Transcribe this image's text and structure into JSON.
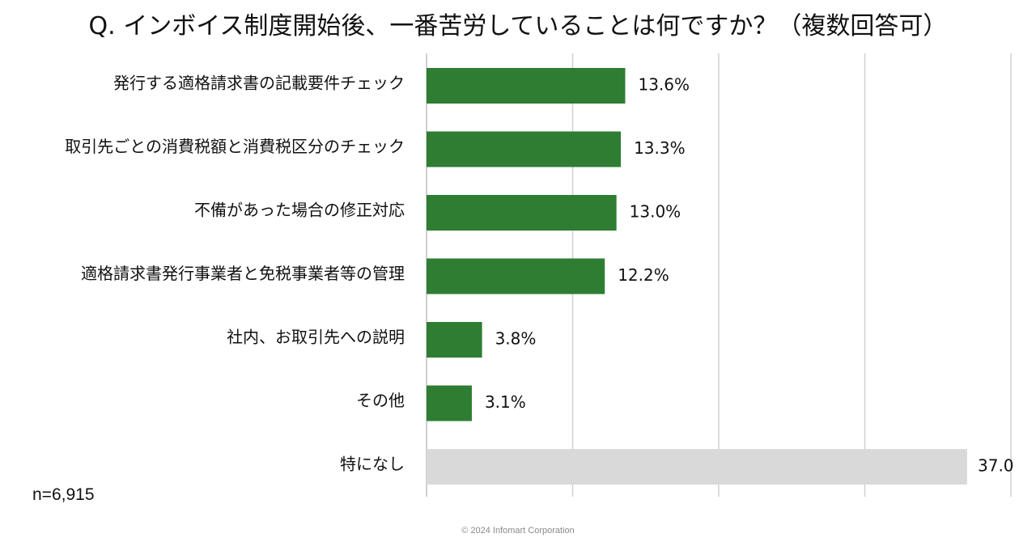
{
  "chart_data": {
    "type": "bar",
    "orientation": "horizontal",
    "title": "Q. インボイス制度開始後、一番苦労していることは何ですか？（複数回答可）",
    "categories": [
      "発行する適格請求書の記載要件チェック",
      "取引先ごとの消費税額と消費税区分のチェック",
      "不備があった場合の修正対応",
      "適格請求書発行事業者と免税事業者等の管理",
      "社内、お取引先への説明",
      "その他",
      "特になし"
    ],
    "values": [
      13.6,
      13.3,
      13.0,
      12.2,
      3.8,
      3.1,
      37.0
    ],
    "value_labels": [
      "13.6%",
      "13.3%",
      "13.0%",
      "12.2%",
      "3.8%",
      "3.1%",
      "37.0"
    ],
    "bar_colors": [
      "#2e7d32",
      "#2e7d32",
      "#2e7d32",
      "#2e7d32",
      "#2e7d32",
      "#2e7d32",
      "#d9d9d9"
    ],
    "xlim": [
      0,
      40
    ],
    "gridlines": [
      10,
      20,
      30,
      40
    ],
    "grid": true,
    "xlabel": "",
    "ylabel": ""
  },
  "sample_size": "n=6,915",
  "copyright": "© 2024 Infomart Corporation",
  "colors": {
    "grid": "#d0d0d0",
    "axis": "#bfbfbf",
    "text": "#111111"
  }
}
